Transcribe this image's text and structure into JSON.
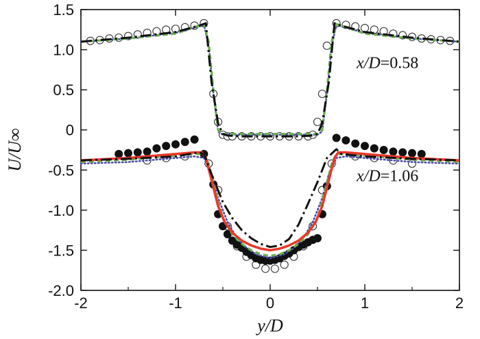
{
  "chart_data": {
    "type": "line",
    "title": "",
    "xlabel": "y/D",
    "ylabel": "U/U∞",
    "xlim": [
      -2,
      2
    ],
    "ylim": [
      -2.0,
      1.5
    ],
    "xticks": [
      -2,
      -1,
      0,
      1,
      2
    ],
    "xtick_labels": [
      "-2",
      "-1",
      "0",
      "1",
      "2"
    ],
    "yticks": [
      -2.0,
      -1.5,
      -1.0,
      -0.5,
      0,
      0.5,
      1.0,
      1.5
    ],
    "ytick_labels": [
      "-2.0",
      "-1.5",
      "-1.0",
      "-0.5",
      "0",
      "0.5",
      "1.0",
      "1.5"
    ],
    "annotations": [
      {
        "italic": "x/D",
        "value": "=0.58",
        "x": 1.0,
        "y": 0.77
      },
      {
        "italic": "x/D",
        "value": "=1.06",
        "x": 1.0,
        "y": -0.64
      }
    ],
    "series": [
      {
        "name": "red solid (x/D=1.06)",
        "color": "#e8392a",
        "style": "solid",
        "x": [
          -2,
          -1.5,
          -1.0,
          -0.8,
          -0.72,
          -0.68,
          -0.62,
          -0.55,
          -0.48,
          -0.4,
          -0.3,
          -0.2,
          -0.1,
          0,
          0.1,
          0.2,
          0.3,
          0.4,
          0.48,
          0.55,
          0.62,
          0.68,
          0.72,
          0.8,
          1.0,
          1.5,
          2
        ],
        "y": [
          -0.38,
          -0.35,
          -0.3,
          -0.28,
          -0.28,
          -0.35,
          -0.62,
          -0.95,
          -1.15,
          -1.28,
          -1.38,
          -1.44,
          -1.48,
          -1.5,
          -1.48,
          -1.44,
          -1.38,
          -1.28,
          -1.15,
          -0.95,
          -0.62,
          -0.35,
          -0.28,
          -0.28,
          -0.3,
          -0.35,
          -0.38
        ]
      },
      {
        "name": "black dash-dot (x/D=0.58)",
        "color": "#111111",
        "style": "dashdot",
        "x": [
          -2,
          -1.5,
          -1.0,
          -0.75,
          -0.68,
          -0.62,
          -0.55,
          -0.5,
          -0.45,
          -0.3,
          0,
          0.3,
          0.45,
          0.5,
          0.55,
          0.62,
          0.68,
          0.75,
          1.0,
          1.5,
          2
        ],
        "y": [
          1.1,
          1.15,
          1.22,
          1.3,
          1.33,
          0.6,
          0.08,
          -0.05,
          -0.07,
          -0.08,
          -0.08,
          -0.08,
          -0.07,
          -0.05,
          0.08,
          0.6,
          1.33,
          1.3,
          1.22,
          1.15,
          1.1
        ]
      },
      {
        "name": "black dash-dot (x/D=1.06)",
        "color": "#111111",
        "style": "dashdot",
        "x": [
          -2,
          -1.5,
          -1.0,
          -0.75,
          -0.7,
          -0.62,
          -0.5,
          -0.4,
          -0.3,
          -0.2,
          -0.1,
          0,
          0.1,
          0.2,
          0.3,
          0.4,
          0.5,
          0.6,
          0.7,
          0.75,
          1.0,
          1.5,
          2
        ],
        "y": [
          -0.38,
          -0.36,
          -0.33,
          -0.28,
          -0.3,
          -0.55,
          -0.9,
          -1.1,
          -1.25,
          -1.35,
          -1.42,
          -1.46,
          -1.44,
          -1.36,
          -1.18,
          -0.92,
          -0.65,
          -0.35,
          -0.24,
          -0.3,
          -0.33,
          -0.36,
          -0.38
        ]
      },
      {
        "name": "green dashed (x/D=0.58)",
        "color": "#6ab04c",
        "style": "dashed",
        "x": [
          -2,
          -1.5,
          -1.0,
          -0.75,
          -0.7,
          -0.65,
          -0.6,
          -0.55,
          -0.5,
          -0.3,
          0,
          0.3,
          0.5,
          0.55,
          0.6,
          0.65,
          0.7,
          0.75,
          1.0,
          1.5,
          2
        ],
        "y": [
          1.1,
          1.14,
          1.2,
          1.3,
          1.32,
          1.1,
          0.5,
          0.0,
          -0.05,
          -0.05,
          -0.05,
          -0.05,
          -0.05,
          0.0,
          0.5,
          1.1,
          1.32,
          1.3,
          1.2,
          1.14,
          1.1
        ]
      },
      {
        "name": "green dashed (x/D=1.06)",
        "color": "#6ab04c",
        "style": "dashed",
        "x": [
          -2,
          -1.5,
          -1.0,
          -0.8,
          -0.7,
          -0.65,
          -0.58,
          -0.5,
          -0.4,
          -0.3,
          -0.2,
          -0.1,
          0,
          0.1,
          0.2,
          0.3,
          0.4,
          0.5,
          0.58,
          0.65,
          0.7,
          0.8,
          1.0,
          1.5,
          2
        ],
        "y": [
          -0.4,
          -0.37,
          -0.32,
          -0.3,
          -0.3,
          -0.42,
          -0.75,
          -1.1,
          -1.3,
          -1.42,
          -1.5,
          -1.55,
          -1.57,
          -1.55,
          -1.5,
          -1.42,
          -1.3,
          -1.1,
          -0.75,
          -0.42,
          -0.3,
          -0.3,
          -0.32,
          -0.37,
          -0.4
        ]
      },
      {
        "name": "blue dotted (x/D=0.58)",
        "color": "#4a4aa8",
        "style": "dotted",
        "x": [
          -2,
          -1.5,
          -1.0,
          -0.75,
          -0.7,
          -0.65,
          -0.6,
          -0.55,
          -0.5,
          -0.3,
          0,
          0.3,
          0.5,
          0.55,
          0.6,
          0.65,
          0.7,
          0.75,
          1.0,
          1.5,
          2
        ],
        "y": [
          1.1,
          1.14,
          1.21,
          1.29,
          1.31,
          1.05,
          0.45,
          -0.02,
          -0.06,
          -0.06,
          -0.06,
          -0.06,
          -0.06,
          -0.02,
          0.45,
          1.05,
          1.31,
          1.29,
          1.21,
          1.14,
          1.1
        ]
      },
      {
        "name": "blue dotted (x/D=1.06)",
        "color": "#4a4aa8",
        "style": "dotted",
        "x": [
          -2,
          -1.5,
          -1.0,
          -0.8,
          -0.7,
          -0.62,
          -0.55,
          -0.45,
          -0.35,
          -0.25,
          -0.15,
          0,
          0.15,
          0.25,
          0.35,
          0.45,
          0.55,
          0.62,
          0.7,
          0.8,
          1.0,
          1.5,
          2
        ],
        "y": [
          -0.42,
          -0.4,
          -0.35,
          -0.33,
          -0.35,
          -0.55,
          -0.85,
          -1.15,
          -1.35,
          -1.47,
          -1.55,
          -1.6,
          -1.55,
          -1.47,
          -1.35,
          -1.15,
          -0.85,
          -0.55,
          -0.35,
          -0.33,
          -0.35,
          -0.4,
          -0.42
        ]
      },
      {
        "name": "open circles (x/D=0.58)",
        "color": "#333333",
        "style": "open-marker",
        "x": [
          -1.9,
          -1.8,
          -1.7,
          -1.6,
          -1.5,
          -1.4,
          -1.3,
          -1.2,
          -1.1,
          -1.0,
          -0.9,
          -0.8,
          -0.7,
          -0.6,
          -0.55,
          -0.5,
          -0.45,
          -0.4,
          -0.3,
          -0.2,
          -0.1,
          0,
          0.1,
          0.2,
          0.3,
          0.4,
          0.45,
          0.5,
          0.55,
          0.6,
          0.7,
          0.8,
          0.9,
          1.0,
          1.1,
          1.2,
          1.3,
          1.4,
          1.5,
          1.6,
          1.7,
          1.8,
          1.9
        ],
        "y": [
          1.11,
          1.12,
          1.14,
          1.15,
          1.17,
          1.19,
          1.21,
          1.23,
          1.25,
          1.26,
          1.28,
          1.3,
          1.33,
          0.45,
          0.1,
          -0.06,
          -0.08,
          -0.08,
          -0.08,
          -0.08,
          -0.08,
          -0.08,
          -0.08,
          -0.08,
          -0.08,
          -0.08,
          -0.06,
          0.1,
          0.45,
          1.05,
          1.33,
          1.31,
          1.29,
          1.27,
          1.25,
          1.23,
          1.2,
          1.18,
          1.16,
          1.14,
          1.13,
          1.12,
          1.11
        ]
      },
      {
        "name": "open circles (x/D=1.06)",
        "color": "#333333",
        "style": "open-marker",
        "x": [
          -1.3,
          -1.1,
          -0.9,
          -0.65,
          -0.55,
          -0.45,
          -0.35,
          -0.25,
          -0.15,
          -0.05,
          0.05,
          0.15,
          0.25,
          0.35,
          0.45,
          0.55,
          0.65,
          0.9,
          1.1,
          1.3,
          1.5
        ],
        "y": [
          -0.38,
          -0.35,
          -0.33,
          -0.42,
          -0.75,
          -1.2,
          -1.45,
          -1.58,
          -1.68,
          -1.73,
          -1.73,
          -1.68,
          -1.58,
          -1.45,
          -1.2,
          -0.75,
          -0.42,
          -0.33,
          -0.35,
          -0.38,
          -0.42
        ]
      },
      {
        "name": "filled circles (x/D=1.06)",
        "color": "#111111",
        "style": "filled-marker",
        "x": [
          -1.6,
          -1.5,
          -1.4,
          -1.3,
          -1.2,
          -1.1,
          -1.0,
          -0.9,
          -0.8,
          -0.7,
          -0.6,
          -0.55,
          -0.5,
          -0.45,
          -0.4,
          -0.35,
          -0.3,
          -0.25,
          -0.2,
          -0.15,
          -0.1,
          -0.05,
          0,
          0.05,
          0.1,
          0.15,
          0.2,
          0.25,
          0.3,
          0.35,
          0.4,
          0.45,
          0.5,
          0.55,
          0.6,
          0.7,
          0.8,
          0.9,
          1.0,
          1.1,
          1.2,
          1.3,
          1.4,
          1.5,
          1.6
        ],
        "y": [
          -0.3,
          -0.29,
          -0.28,
          -0.27,
          -0.23,
          -0.2,
          -0.18,
          -0.15,
          -0.12,
          -0.3,
          -0.68,
          -1.05,
          -1.2,
          -1.3,
          -1.38,
          -1.43,
          -1.47,
          -1.52,
          -1.56,
          -1.6,
          -1.62,
          -1.63,
          -1.63,
          -1.62,
          -1.6,
          -1.57,
          -1.54,
          -1.5,
          -1.46,
          -1.43,
          -1.4,
          -1.37,
          -1.35,
          -1.05,
          -0.7,
          -0.1,
          -0.13,
          -0.17,
          -0.2,
          -0.23,
          -0.25,
          -0.27,
          -0.28,
          -0.29,
          -0.3
        ]
      }
    ]
  }
}
